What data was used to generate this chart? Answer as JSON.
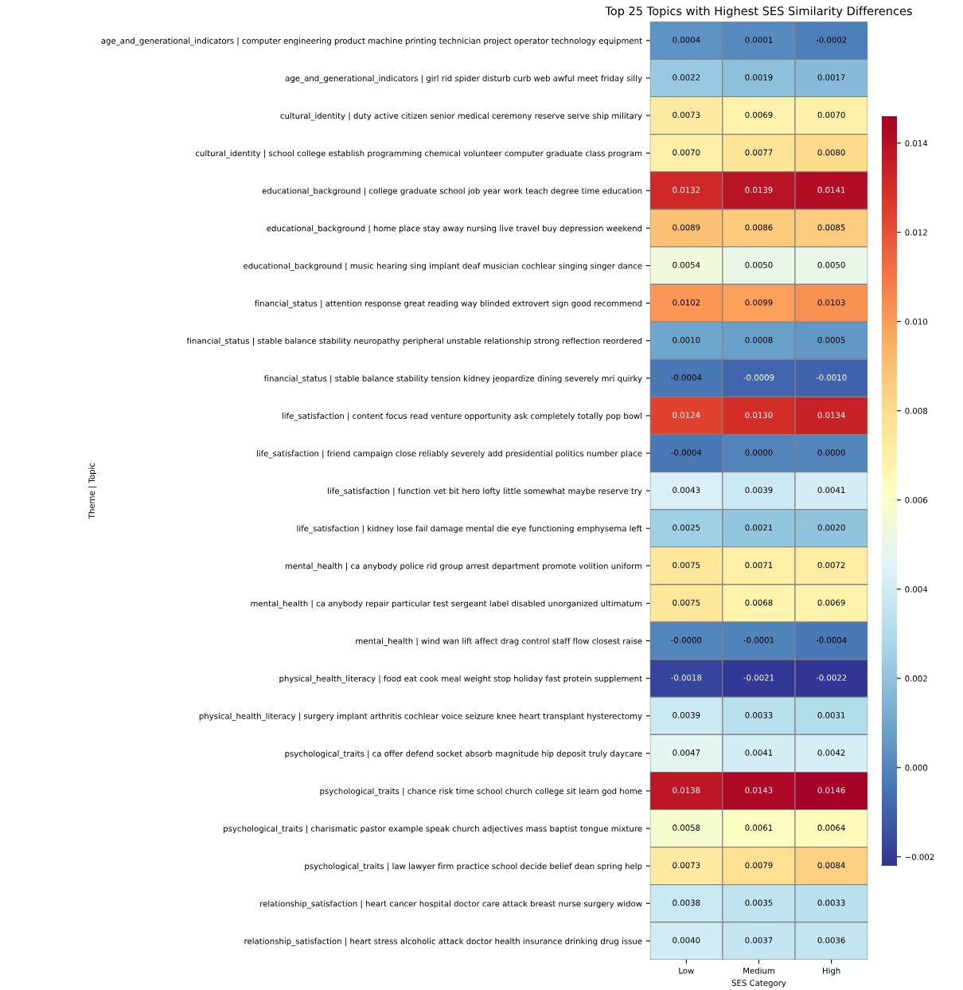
{
  "chart_data": {
    "type": "heatmap",
    "title": "Top 25 Topics with Highest SES Similarity Differences",
    "xlabel": "SES Category",
    "ylabel": "Theme | Topic",
    "categories": [
      "Low",
      "Medium",
      "High"
    ],
    "y_categories": [
      "age_and_generational_indicators | computer engineering product machine printing technician project operator technology equipment",
      "age_and_generational_indicators | girl rid spider disturb curb web awful meet friday silly",
      "cultural_identity | duty active citizen senior medical ceremony reserve serve ship military",
      "cultural_identity | school college establish programming chemical volunteer computer graduate class program",
      "educational_background | college graduate school job year work teach degree time education",
      "educational_background | home place stay away nursing live travel buy depression weekend",
      "educational_background | music hearing sing implant deaf musician cochlear singing singer dance",
      "financial_status | attention response great reading way blinded extrovert sign good recommend",
      "financial_status | stable balance stability neuropathy peripheral unstable relationship strong reflection reordered",
      "financial_status | stable balance stability tension kidney jeopardize dining severely mri quirky",
      "life_satisfaction | content focus read venture opportunity ask completely totally pop bowl",
      "life_satisfaction | friend campaign close reliably severely add presidential politics number place",
      "life_satisfaction | function vet bit hero lofty little somewhat maybe reserve try",
      "life_satisfaction | kidney lose fail damage mental die eye functioning emphysema left",
      "mental_health | ca anybody police rid group arrest department promote volition uniform",
      "mental_health | ca anybody repair particular test sergeant label disabled unorganized ultimatum",
      "mental_health | wind wan lift affect drag control staff flow closest raise",
      "physical_health_literacy | food eat cook meal weight stop holiday fast protein supplement",
      "physical_health_literacy | surgery implant arthritis cochlear voice seizure knee heart transplant hysterectomy",
      "psychological_traits | ca offer defend socket absorb magnitude hip deposit truly daycare",
      "psychological_traits | chance risk time school church college sit learn god home",
      "psychological_traits | charismatic pastor example speak church adjectives mass baptist tongue mixture",
      "psychological_traits | law lawyer firm practice school decide belief dean spring help",
      "relationship_satisfaction | heart cancer hospital doctor care attack breast nurse surgery widow",
      "relationship_satisfaction | heart stress alcoholic attack doctor health insurance drinking drug issue"
    ],
    "cells": [
      [
        0.0004,
        0.0001,
        -0.0002
      ],
      [
        0.0022,
        0.0019,
        0.0017
      ],
      [
        0.0073,
        0.0069,
        0.007
      ],
      [
        0.007,
        0.0077,
        0.008
      ],
      [
        0.0132,
        0.0139,
        0.0141
      ],
      [
        0.0089,
        0.0086,
        0.0085
      ],
      [
        0.0054,
        0.005,
        0.005
      ],
      [
        0.0102,
        0.0099,
        0.0103
      ],
      [
        0.001,
        0.0008,
        0.0005
      ],
      [
        -0.0004,
        -0.0009,
        -0.001
      ],
      [
        0.0124,
        0.013,
        0.0134
      ],
      [
        -0.0004,
        0.0,
        0.0
      ],
      [
        0.0043,
        0.0039,
        0.0041
      ],
      [
        0.0025,
        0.0021,
        0.002
      ],
      [
        0.0075,
        0.0071,
        0.0072
      ],
      [
        0.0075,
        0.0068,
        0.0069
      ],
      [
        0.0,
        -0.0001,
        -0.0004
      ],
      [
        -0.0018,
        -0.0021,
        -0.0022
      ],
      [
        0.0039,
        0.0033,
        0.0031
      ],
      [
        0.0047,
        0.0041,
        0.0042
      ],
      [
        0.0138,
        0.0143,
        0.0146
      ],
      [
        0.0058,
        0.0061,
        0.0064
      ],
      [
        0.0073,
        0.0079,
        0.0084
      ],
      [
        0.0038,
        0.0035,
        0.0033
      ],
      [
        0.004,
        0.0037,
        0.0036
      ]
    ],
    "cell_labels": [
      [
        "0.0004",
        "0.0001",
        "-0.0002"
      ],
      [
        "0.0022",
        "0.0019",
        "0.0017"
      ],
      [
        "0.0073",
        "0.0069",
        "0.0070"
      ],
      [
        "0.0070",
        "0.0077",
        "0.0080"
      ],
      [
        "0.0132",
        "0.0139",
        "0.0141"
      ],
      [
        "0.0089",
        "0.0086",
        "0.0085"
      ],
      [
        "0.0054",
        "0.0050",
        "0.0050"
      ],
      [
        "0.0102",
        "0.0099",
        "0.0103"
      ],
      [
        "0.0010",
        "0.0008",
        "0.0005"
      ],
      [
        "-0.0004",
        "-0.0009",
        "-0.0010"
      ],
      [
        "0.0124",
        "0.0130",
        "0.0134"
      ],
      [
        "-0.0004",
        "0.0000",
        "0.0000"
      ],
      [
        "0.0043",
        "0.0039",
        "0.0041"
      ],
      [
        "0.0025",
        "0.0021",
        "0.0020"
      ],
      [
        "0.0075",
        "0.0071",
        "0.0072"
      ],
      [
        "0.0075",
        "0.0068",
        "0.0069"
      ],
      [
        "-0.0000",
        "-0.0001",
        "-0.0004"
      ],
      [
        "-0.0018",
        "-0.0021",
        "-0.0022"
      ],
      [
        "0.0039",
        "0.0033",
        "0.0031"
      ],
      [
        "0.0047",
        "0.0041",
        "0.0042"
      ],
      [
        "0.0138",
        "0.0143",
        "0.0146"
      ],
      [
        "0.0058",
        "0.0061",
        "0.0064"
      ],
      [
        "0.0073",
        "0.0079",
        "0.0084"
      ],
      [
        "0.0038",
        "0.0035",
        "0.0033"
      ],
      [
        "0.0040",
        "0.0037",
        "0.0036"
      ]
    ],
    "clim": [
      -0.0022,
      0.0146
    ],
    "cticks": [
      {
        "value": -0.002,
        "label": "−0.002"
      },
      {
        "value": 0.0,
        "label": "0.000"
      },
      {
        "value": 0.002,
        "label": "0.002"
      },
      {
        "value": 0.004,
        "label": "0.004"
      },
      {
        "value": 0.006,
        "label": "0.006"
      },
      {
        "value": 0.008,
        "label": "0.008"
      },
      {
        "value": 0.01,
        "label": "0.010"
      },
      {
        "value": 0.012,
        "label": "0.012"
      },
      {
        "value": 0.014,
        "label": "0.014"
      }
    ]
  }
}
